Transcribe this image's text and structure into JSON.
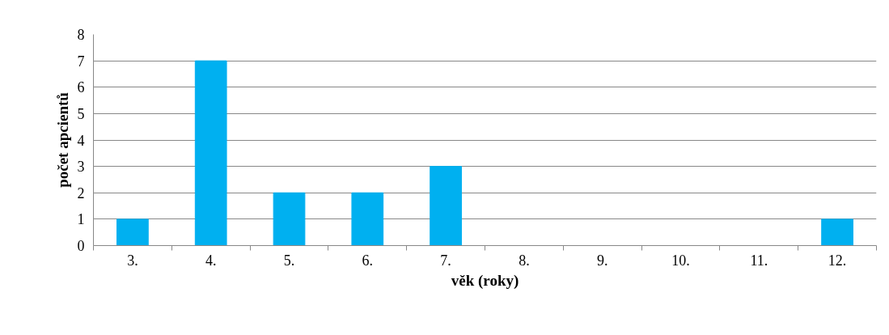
{
  "chart_data": {
    "type": "bar",
    "xlabel": "věk (roky)",
    "ylabel": "počet apcientů",
    "categories": [
      "3.",
      "4.",
      "5.",
      "6.",
      "7.",
      "8.",
      "9.",
      "10.",
      "11.",
      "12."
    ],
    "values": [
      1,
      7,
      2,
      2,
      3,
      0,
      0,
      0,
      0,
      1
    ],
    "color": "#00b0f0",
    "ylim": [
      0,
      8
    ],
    "yticks": [
      0,
      1,
      2,
      3,
      4,
      5,
      6,
      7,
      8
    ],
    "grid": "y"
  }
}
